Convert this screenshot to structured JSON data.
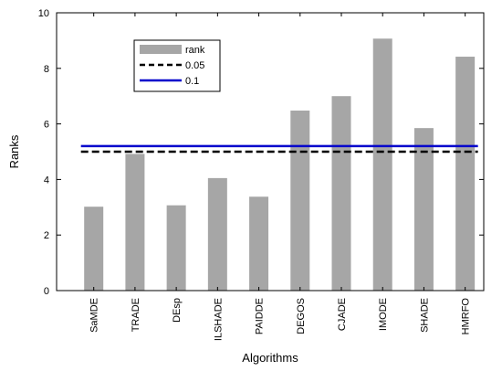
{
  "chart_data": {
    "type": "bar",
    "title": "",
    "xlabel": "Algorithms",
    "ylabel": "Ranks",
    "ylim": [
      0,
      10
    ],
    "yticks": [
      0,
      2,
      4,
      6,
      8,
      10
    ],
    "grid": false,
    "legend_position": "top-left",
    "categories": [
      "SaMDE",
      "TRADE",
      "DEsp",
      "ILSHADE",
      "PAIDDE",
      "DEGOS",
      "CJADE",
      "IMODE",
      "SHADE",
      "HMRFO"
    ],
    "series": [
      {
        "name": "rank",
        "values": [
          3.02,
          4.92,
          3.07,
          4.05,
          3.38,
          6.48,
          7.0,
          9.07,
          5.85,
          8.42
        ],
        "color": "#a6a6a6"
      }
    ],
    "reference_lines": [
      {
        "name": "0.05",
        "value": 5.0,
        "color": "#000000",
        "style": "dashed"
      },
      {
        "name": "0.1",
        "value": 5.2,
        "color": "#0000cc",
        "style": "solid"
      }
    ]
  }
}
